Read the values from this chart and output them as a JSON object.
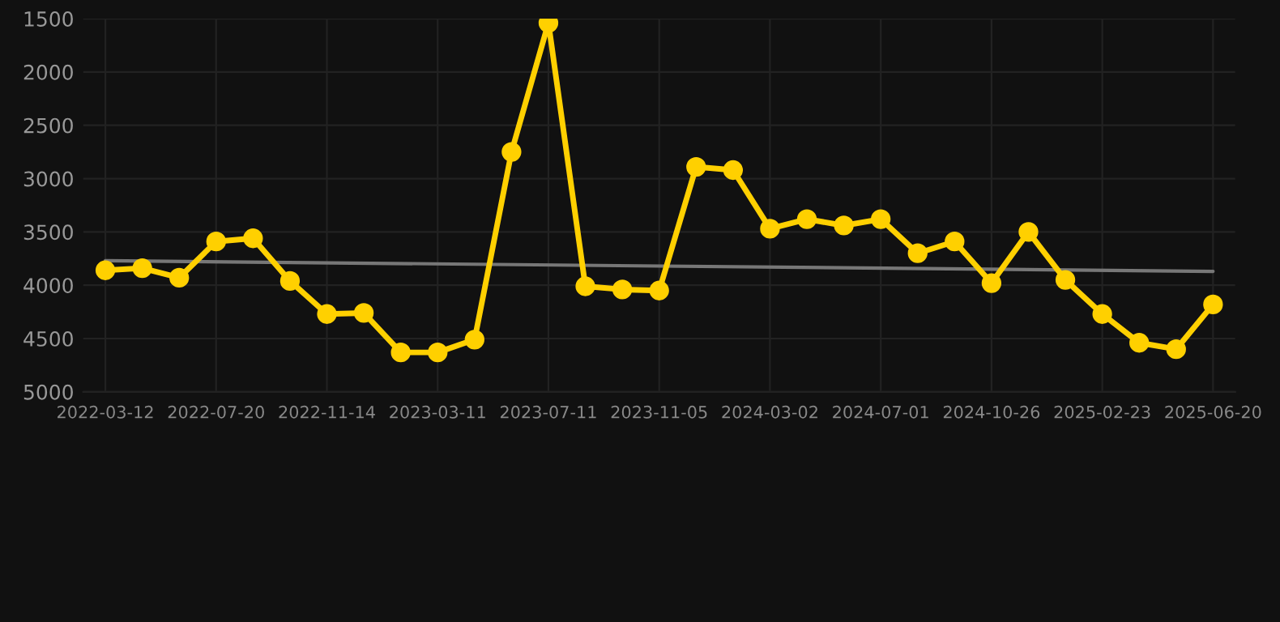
{
  "chart_data": {
    "type": "line",
    "categories": [
      "2022-03-12",
      null,
      null,
      "2022-07-20",
      null,
      null,
      "2022-11-14",
      null,
      null,
      "2023-03-11",
      null,
      null,
      "2023-07-11",
      null,
      null,
      "2023-11-05",
      null,
      null,
      "2024-03-02",
      null,
      null,
      "2024-07-01",
      null,
      null,
      "2024-10-26",
      null,
      null,
      "2025-02-23",
      null,
      null,
      "2025-06-20"
    ],
    "series": [
      {
        "color": "#ffd000",
        "marker": "circle",
        "values": [
          3860,
          3840,
          3930,
          3590,
          3560,
          3960,
          4270,
          4260,
          4630,
          4630,
          4510,
          2750,
          1540,
          4010,
          4040,
          4050,
          2890,
          2920,
          3470,
          3380,
          3440,
          3380,
          3700,
          3590,
          3980,
          3500,
          3950,
          4270,
          4540,
          4600,
          4180
        ]
      },
      {
        "type": "line",
        "color": "#777777",
        "marker": "none",
        "values": [
          3770,
          null,
          null,
          null,
          null,
          null,
          null,
          null,
          null,
          null,
          null,
          null,
          null,
          null,
          null,
          null,
          null,
          null,
          null,
          null,
          null,
          null,
          null,
          null,
          null,
          null,
          null,
          null,
          null,
          null,
          3870
        ]
      }
    ],
    "ylim": [
      5000,
      1500
    ],
    "yticks": [
      1500,
      2000,
      2500,
      3000,
      3500,
      4000,
      4500,
      5000
    ],
    "grid": true
  }
}
